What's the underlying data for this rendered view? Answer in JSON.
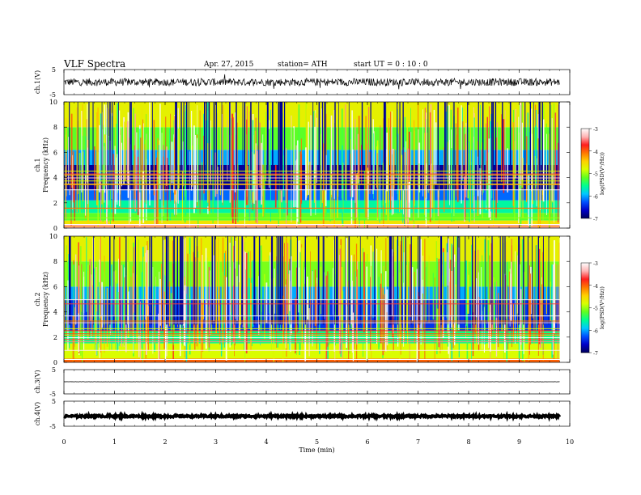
{
  "header": {
    "title": "VLF Spectra",
    "date": "Apr. 27, 2015",
    "station": "station= ATH",
    "start": "start  UT  =  0 : 10 : 0"
  },
  "colors": {
    "spectrogram_stops": [
      "#00005a",
      "#0000c8",
      "#0050ff",
      "#00c8ff",
      "#00ff90",
      "#60ff20",
      "#d8ff00",
      "#ffd000",
      "#ff7800",
      "#ff1e1e",
      "#ffb4b4",
      "#ffffff"
    ]
  },
  "chart_data": [
    {
      "type": "line",
      "name": "ch1-waveform",
      "ylabel": "ch.1(V)",
      "yticks": [
        "5",
        "-5"
      ],
      "ylim": [
        -5,
        5
      ],
      "xlim": [
        0,
        10
      ],
      "baseline": 0,
      "noise_amplitude": 1.5,
      "data_end": 9.8
    },
    {
      "type": "heatmap",
      "name": "ch1-spectrogram",
      "ylabel_channel": "ch.1",
      "ylabel": "Frequency  (kHz)",
      "yticks": [
        "0",
        "2",
        "4",
        "6",
        "8",
        "10"
      ],
      "ylim": [
        0,
        10
      ],
      "xlim": [
        0,
        10
      ],
      "data_end": 9.8,
      "colorbar": {
        "label": "log(PSD(V²/Hz))",
        "ticks": [
          "-3",
          "-4",
          "-5",
          "-6",
          "-7"
        ],
        "range": [
          -7,
          -3
        ]
      },
      "bands": [
        {
          "from": 0,
          "to": 0.3,
          "level": -3.4
        },
        {
          "from": 0.3,
          "to": 0.6,
          "level": -4.6
        },
        {
          "from": 0.6,
          "to": 1.2,
          "level": -5.2
        },
        {
          "from": 1.2,
          "to": 2.2,
          "level": -5.6
        },
        {
          "from": 2.2,
          "to": 3.0,
          "level": -6.2
        },
        {
          "from": 3.0,
          "to": 5.0,
          "level": -6.8
        },
        {
          "from": 5.0,
          "to": 6.2,
          "level": -6.0
        },
        {
          "from": 6.2,
          "to": 8.0,
          "level": -5.2
        },
        {
          "from": 8.0,
          "to": 10.0,
          "level": -4.7
        }
      ]
    },
    {
      "type": "heatmap",
      "name": "ch2-spectrogram",
      "ylabel_channel": "ch.2",
      "ylabel": "Frequency  (kHz)",
      "yticks": [
        "0",
        "2",
        "4",
        "6",
        "8",
        "10"
      ],
      "ylim": [
        0,
        10
      ],
      "xlim": [
        0,
        10
      ],
      "data_end": 9.8,
      "colorbar": {
        "label": "log(PSD(V²/Hz))",
        "ticks": [
          "-3",
          "-4",
          "-5",
          "-6",
          "-7"
        ],
        "range": [
          -7,
          -3
        ]
      },
      "bands": [
        {
          "from": 0,
          "to": 0.3,
          "level": -4.0
        },
        {
          "from": 0.3,
          "to": 1.5,
          "level": -4.8
        },
        {
          "from": 1.5,
          "to": 2.5,
          "level": -5.5
        },
        {
          "from": 2.5,
          "to": 5.0,
          "level": -6.4
        },
        {
          "from": 5.0,
          "to": 6.0,
          "level": -6.0
        },
        {
          "from": 6.0,
          "to": 8.0,
          "level": -5.1
        },
        {
          "from": 8.0,
          "to": 10.0,
          "level": -4.7
        }
      ]
    },
    {
      "type": "line",
      "name": "ch3-waveform",
      "ylabel": "ch.3(V)",
      "yticks": [
        "5",
        "-5"
      ],
      "ylim": [
        -5,
        5
      ],
      "xlim": [
        0,
        10
      ],
      "baseline": 0,
      "noise_amplitude": 0.05,
      "data_end": 9.8
    },
    {
      "type": "line",
      "name": "ch4-waveform",
      "ylabel": "ch.4(V)",
      "yticks": [
        "5",
        "-5"
      ],
      "ylim": [
        -5,
        5
      ],
      "xlim": [
        0,
        10
      ],
      "baseline": -1,
      "noise_amplitude": 0.4,
      "data_end": 9.8
    }
  ],
  "xaxis": {
    "label": "Time  (min)",
    "ticks": [
      "0",
      "1",
      "2",
      "3",
      "4",
      "5",
      "6",
      "7",
      "8",
      "9",
      "10"
    ],
    "range": [
      0,
      10
    ]
  }
}
